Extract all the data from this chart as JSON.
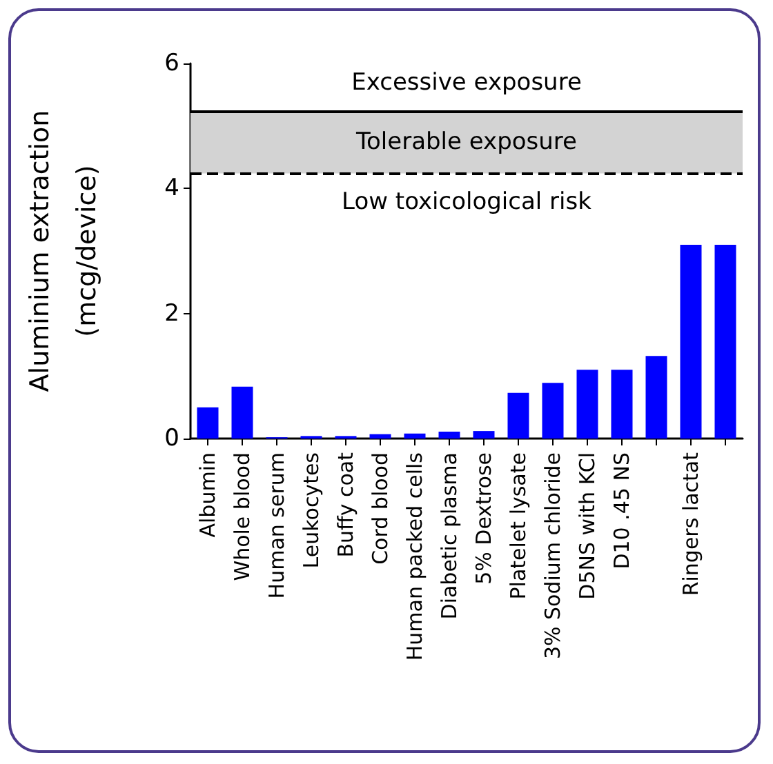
{
  "chart_data": {
    "type": "bar",
    "ylabel": "Aluminium extraction\n(mcg/device)",
    "categories": [
      "Albumin",
      "Whole blood",
      "Human serum",
      "Leukocytes",
      "Buffy coat",
      "Cord blood",
      "Human packed cells",
      "Diabetic plasma",
      "5% Dextrose",
      "Platelet lysate",
      "3% Sodium chloride",
      "D5NS with KCl",
      "D10 .45 NS",
      null,
      "Ringers lactat",
      null
    ],
    "values": [
      0.5,
      0.83,
      0.02,
      0.04,
      0.04,
      0.07,
      0.08,
      0.11,
      0.12,
      0.73,
      0.89,
      1.1,
      1.1,
      1.32,
      3.1,
      3.1
    ],
    "color": "#0000ff",
    "ylim": [
      0,
      6
    ],
    "yticks": [
      0,
      2,
      4,
      6
    ],
    "grid": false,
    "ref_lines": [
      {
        "axis": "y",
        "value": 5.24,
        "label": "Excessive exposure",
        "line_style": "solid",
        "color": "#000000"
      },
      {
        "axis": "y",
        "value": 4.24,
        "label": "Low toxicological risk",
        "line_style": "dashed",
        "color": "#000000"
      }
    ],
    "bands": [
      {
        "axis": "y",
        "from": 4.24,
        "to": 5.24,
        "label": "Tolerable exposure",
        "color": "#d3d3d3"
      }
    ]
  }
}
